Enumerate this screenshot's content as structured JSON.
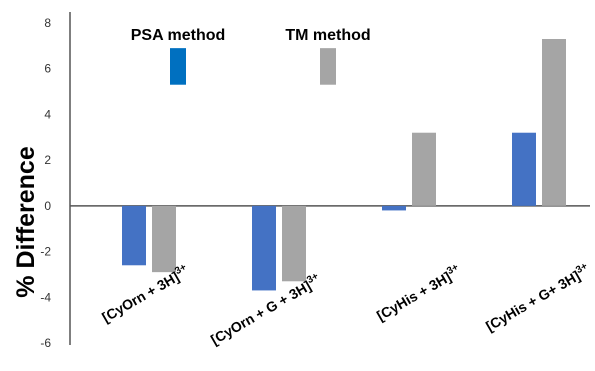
{
  "chart_data": {
    "type": "bar",
    "ylabel": "% Difference",
    "ylim": [
      -6,
      8
    ],
    "yticks": [
      -6,
      -4,
      -2,
      0,
      2,
      4,
      6,
      8
    ],
    "grid": false,
    "legend_placement": "top-center",
    "categories": [
      "[CyOrn + 3H]3+",
      "[CyOrn + G + 3H]3+",
      "[CyHis + 3H]3+",
      "[CyHis + G+ 3H]3+"
    ],
    "series": [
      {
        "name": "PSA method",
        "color": "#4472C4",
        "values": [
          -2.6,
          -3.7,
          -0.2,
          3.2
        ]
      },
      {
        "name": "TM method",
        "color": "#A5A5A5",
        "values": [
          -2.9,
          -3.3,
          3.2,
          7.3
        ]
      }
    ],
    "legend_swatches": [
      {
        "color": "#0070C0",
        "range": [
          5.3,
          6.9
        ]
      },
      {
        "color": "#A5A5A5",
        "range": [
          5.3,
          6.9
        ]
      }
    ]
  }
}
